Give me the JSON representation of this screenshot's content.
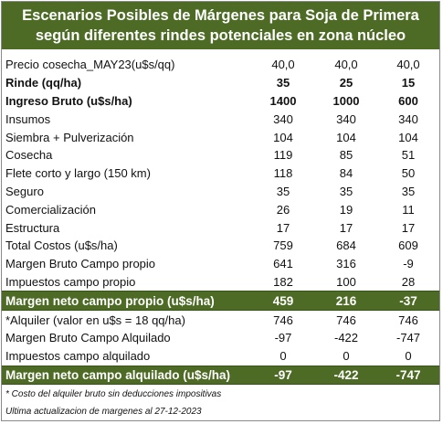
{
  "title": {
    "line1": "Escenarios  Posibles de Márgenes para Soja de Primera",
    "line2": "según diferentes rindes potenciales en zona núcleo"
  },
  "rows": [
    {
      "label": "Precio cosecha_MAY23(u$s/qq)",
      "values": [
        "40,0",
        "40,0",
        "40,0"
      ],
      "style": "normal"
    },
    {
      "label": "Rinde (qq/ha)",
      "values": [
        "35",
        "25",
        "15"
      ],
      "style": "bold"
    },
    {
      "label": "Ingreso Bruto (u$s/ha)",
      "values": [
        "1400",
        "1000",
        "600"
      ],
      "style": "bold"
    },
    {
      "label": "Insumos",
      "values": [
        "340",
        "340",
        "340"
      ],
      "style": "normal"
    },
    {
      "label": "Siembra + Pulverización",
      "values": [
        "104",
        "104",
        "104"
      ],
      "style": "normal"
    },
    {
      "label": "Cosecha",
      "values": [
        "119",
        "85",
        "51"
      ],
      "style": "normal"
    },
    {
      "label": "Flete corto y largo (150 km)",
      "values": [
        "118",
        "84",
        "50"
      ],
      "style": "normal"
    },
    {
      "label": "Seguro",
      "values": [
        "35",
        "35",
        "35"
      ],
      "style": "normal"
    },
    {
      "label": "Comercialización",
      "values": [
        "26",
        "19",
        "11"
      ],
      "style": "normal"
    },
    {
      "label": "Estructura",
      "values": [
        "17",
        "17",
        "17"
      ],
      "style": "normal"
    },
    {
      "label": "Total Costos (u$s/ha)",
      "values": [
        "759",
        "684",
        "609"
      ],
      "style": "normal"
    },
    {
      "label": "Margen Bruto Campo propio",
      "values": [
        "641",
        "316",
        "-9"
      ],
      "style": "normal"
    },
    {
      "label": "Impuestos  campo propio",
      "values": [
        "182",
        "100",
        "28"
      ],
      "style": "normal"
    },
    {
      "label": "Margen neto campo propio (u$s/ha)",
      "values": [
        "459",
        "216",
        "-37"
      ],
      "style": "highlight"
    },
    {
      "label": "*Alquiler (valor en u$s = 18 qq/ha)",
      "values": [
        "746",
        "746",
        "746"
      ],
      "style": "normal"
    },
    {
      "label": "Margen Bruto Campo Alquilado",
      "values": [
        "-97",
        "-422",
        "-747"
      ],
      "style": "normal"
    },
    {
      "label": "Impuestos campo alquilado",
      "values": [
        "0",
        "0",
        "0"
      ],
      "style": "normal"
    },
    {
      "label": "Margen neto campo alquilado (u$s/ha)",
      "values": [
        "-97",
        "-422",
        "-747"
      ],
      "style": "highlight"
    }
  ],
  "notes": {
    "footnote": "* Costo del alquiler bruto sin deducciones impositivas",
    "updated": "Ultima actualizacion de margenes al 27-12-2023"
  },
  "colors": {
    "header_green": "#4d6b25",
    "highlight_text": "#ffffff"
  }
}
